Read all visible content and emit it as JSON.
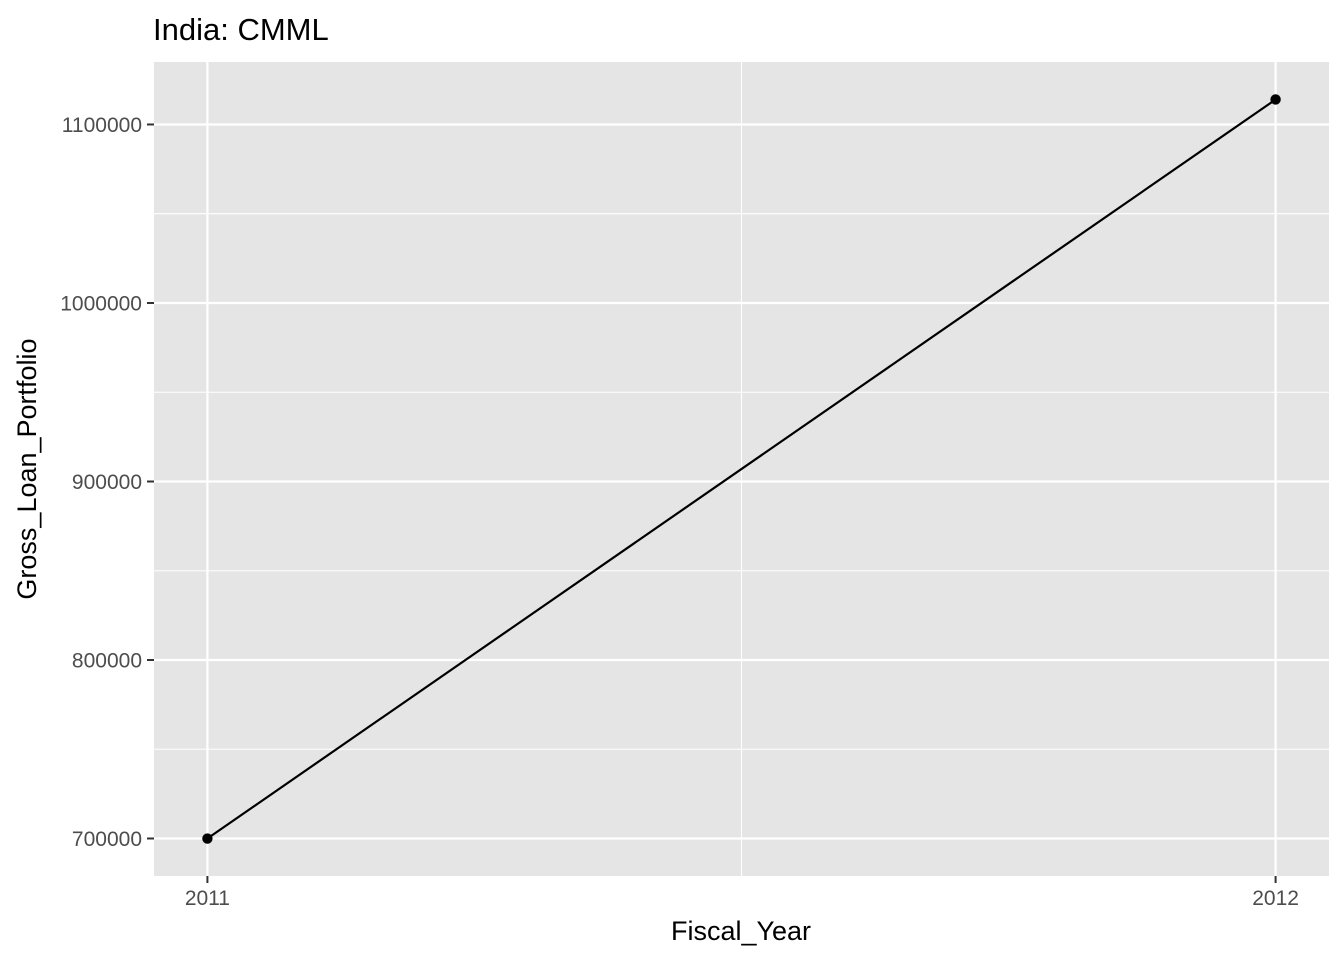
{
  "chart_data": {
    "type": "line",
    "title": "India:  CMML",
    "xlabel": "Fiscal_Year",
    "ylabel": "Gross_Loan_Portfolio",
    "x_ticks": [
      "2011",
      "2012"
    ],
    "y_ticks": [
      "700000",
      "800000",
      "900000",
      "1000000",
      "1100000"
    ],
    "xlim": [
      2010.95,
      2012.05
    ],
    "ylim": [
      679000,
      1135000
    ],
    "grid": true,
    "legend": "none",
    "series": [
      {
        "x": [
          2011,
          2012
        ],
        "y": [
          700000,
          1114000
        ]
      }
    ],
    "colors": {
      "panel_background": "#e5e5e5",
      "grid": "#ffffff",
      "line": "#000000",
      "point": "#000000",
      "tick_text": "#4d4d4d",
      "tick_mark": "#333333"
    }
  }
}
